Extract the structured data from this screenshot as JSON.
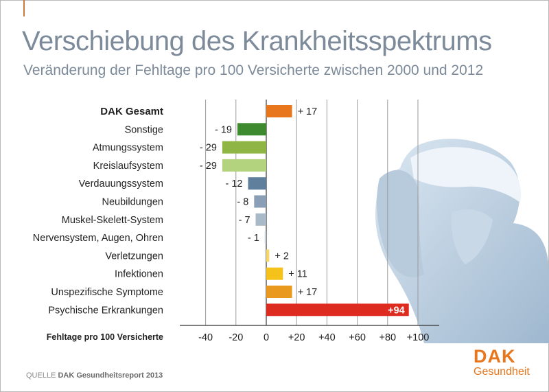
{
  "title": "Verschiebung des Krankheitsspektrums",
  "subtitle": "Veränderung der Fehltage pro 100 Versicherte zwischen 2000 und 2012",
  "source_prefix": "QUELLE",
  "source_name": "DAK Gesundheitsreport 2013",
  "logo": {
    "name": "DAK",
    "sub": "Gesundheit"
  },
  "chart_data": {
    "type": "bar",
    "orientation": "horizontal",
    "categories": [
      "DAK Gesamt",
      "Sonstige",
      "Atmungssystem",
      "Kreislaufsystem",
      "Verdauungssystem",
      "Neubildungen",
      "Muskel-Skelett-System",
      "Nervensystem, Augen, Ohren",
      "Verletzungen",
      "Infektionen",
      "Unspezifische Symptome",
      "Psychische Erkrankungen"
    ],
    "values": [
      17,
      -19,
      -29,
      -29,
      -12,
      -8,
      -7,
      -1,
      2,
      11,
      17,
      94
    ],
    "value_labels": [
      "+ 17",
      "- 19",
      "- 29",
      "- 29",
      "- 12",
      "- 8",
      "- 7",
      "- 1",
      "+ 2",
      "+ 11",
      "+ 17",
      "+94"
    ],
    "colors": [
      "#e8761c",
      "#3e8a2e",
      "#8fb545",
      "#b3d37e",
      "#5f7f9c",
      "#8a9fb5",
      "#a9b9c8",
      "#c5d0da",
      "#f6d86a",
      "#f5c21c",
      "#e99a1e",
      "#de2b20"
    ],
    "xlabel": "Fehltage pro 100 Versicherte",
    "xlim": [
      -55,
      100
    ],
    "xticks": [
      -40,
      -20,
      0,
      20,
      40,
      60,
      80,
      100
    ],
    "xtick_labels": [
      "-40",
      "-20",
      "0",
      "+20",
      "+40",
      "+60",
      "+80",
      "+100"
    ],
    "grid": true,
    "bold_categories": [
      "DAK Gesamt"
    ]
  }
}
